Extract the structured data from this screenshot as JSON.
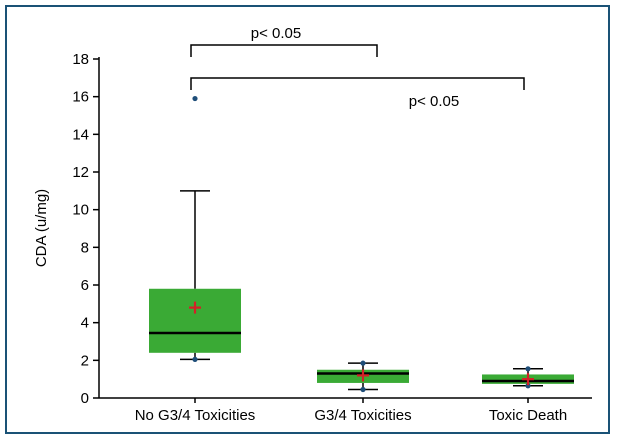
{
  "chart_data": {
    "type": "box",
    "ylabel": "CDA (u/mg)",
    "ylim": [
      0,
      18
    ],
    "yticks": [
      0,
      2,
      4,
      6,
      8,
      10,
      12,
      14,
      16,
      18
    ],
    "grid": false,
    "categories": [
      "No G3/4 Toxicities",
      "G3/4 Toxicities",
      "Toxic Death"
    ],
    "boxes": [
      {
        "category": "No G3/4 Toxicities",
        "whisker_low": 2.05,
        "q1": 2.4,
        "median": 3.45,
        "q3": 5.8,
        "whisker_high": 11.0,
        "mean": 4.8,
        "points": [
          2.05,
          15.9
        ]
      },
      {
        "category": "G3/4 Toxicities",
        "whisker_low": 0.45,
        "q1": 0.8,
        "median": 1.3,
        "q3": 1.5,
        "whisker_high": 1.85,
        "mean": 1.2,
        "points": [
          0.45,
          1.85
        ]
      },
      {
        "category": "Toxic Death",
        "whisker_low": 0.65,
        "q1": 0.75,
        "median": 0.9,
        "q3": 1.25,
        "whisker_high": 1.55,
        "mean": 1.0,
        "points": [
          0.65,
          1.55
        ]
      }
    ],
    "annotations": [
      {
        "text": "p< 0.05",
        "from": 0,
        "to": 1,
        "level": "upper"
      },
      {
        "text": "p< 0.05",
        "from": 0,
        "to": 2,
        "level": "lower"
      }
    ],
    "colors": {
      "box": "#3aaa35",
      "mean": "#d42027",
      "points": "#1f4e79",
      "frame": "#1a5276"
    }
  }
}
